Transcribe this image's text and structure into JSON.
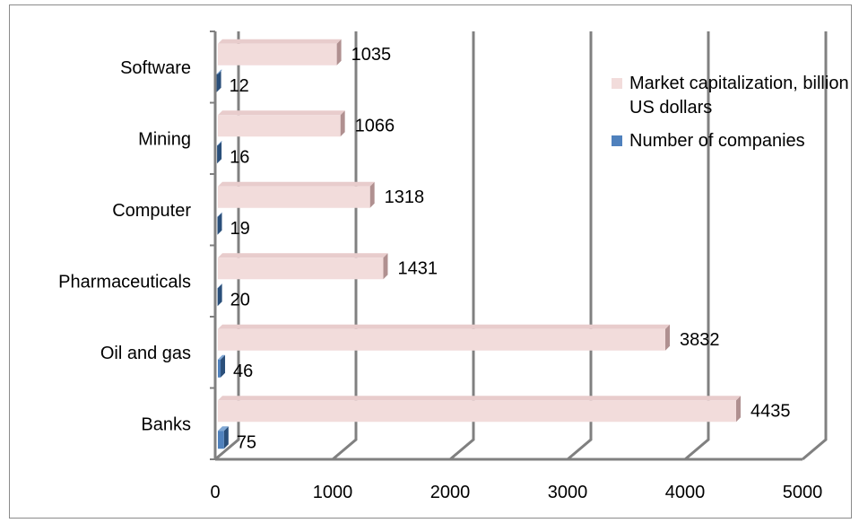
{
  "chart_data": {
    "type": "bar",
    "orientation": "horizontal",
    "style": "3d",
    "categories": [
      "Banks",
      "Oil and gas",
      "Pharmaceuticals",
      "Computer",
      "Mining",
      "Software"
    ],
    "series": [
      {
        "name": "Number of companies",
        "values": [
          75,
          46,
          20,
          19,
          16,
          12
        ],
        "color": "#4f81bd"
      },
      {
        "name": "Market capitalization, billion US dollars",
        "values": [
          4435,
          3832,
          1431,
          1318,
          1066,
          1035
        ],
        "color": "#f2dcdb"
      }
    ],
    "xlim": [
      0,
      5000
    ],
    "xticks": [
      0,
      1000,
      2000,
      3000,
      4000,
      5000
    ],
    "grid": true,
    "legend_position": "right",
    "data_labels": true
  }
}
